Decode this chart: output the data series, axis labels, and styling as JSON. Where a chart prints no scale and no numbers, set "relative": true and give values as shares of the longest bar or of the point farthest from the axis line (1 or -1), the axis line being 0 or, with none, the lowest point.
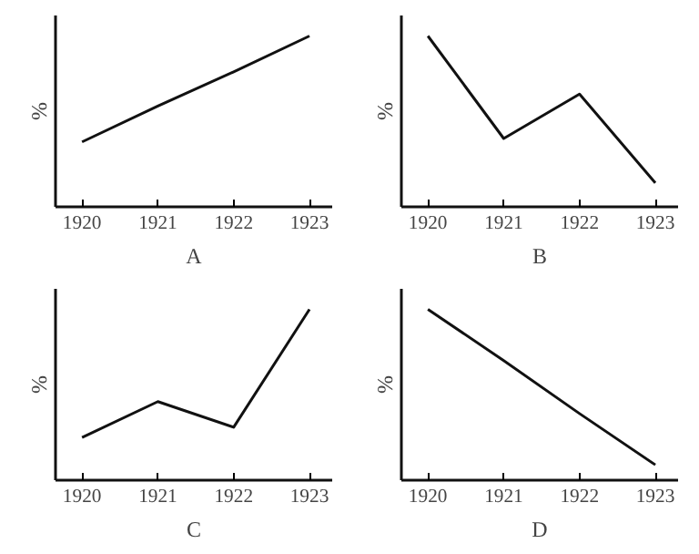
{
  "chart_data": [
    {
      "type": "line",
      "categories": [
        "1920",
        "1921",
        "1922",
        "1923"
      ],
      "values": [
        0.38,
        0.59,
        0.79,
        1
      ],
      "relative": true,
      "ylabel": "%",
      "xlabel": "A",
      "color": "#111111"
    },
    {
      "type": "line",
      "categories": [
        "1920",
        "1921",
        "1922",
        "1923"
      ],
      "values": [
        1,
        0.4,
        0.66,
        0.14
      ],
      "relative": true,
      "ylabel": "%",
      "xlabel": "B",
      "color": "#111111"
    },
    {
      "type": "line",
      "categories": [
        "1920",
        "1921",
        "1922",
        "1923"
      ],
      "values": [
        0.25,
        0.46,
        0.31,
        1
      ],
      "relative": true,
      "ylabel": "%",
      "xlabel": "C",
      "color": "#111111"
    },
    {
      "type": "line",
      "categories": [
        "1920",
        "1921",
        "1922",
        "1923"
      ],
      "values": [
        1,
        0.7,
        0.39,
        0.09
      ],
      "relative": true,
      "ylabel": "%",
      "xlabel": "D",
      "color": "#111111"
    }
  ]
}
